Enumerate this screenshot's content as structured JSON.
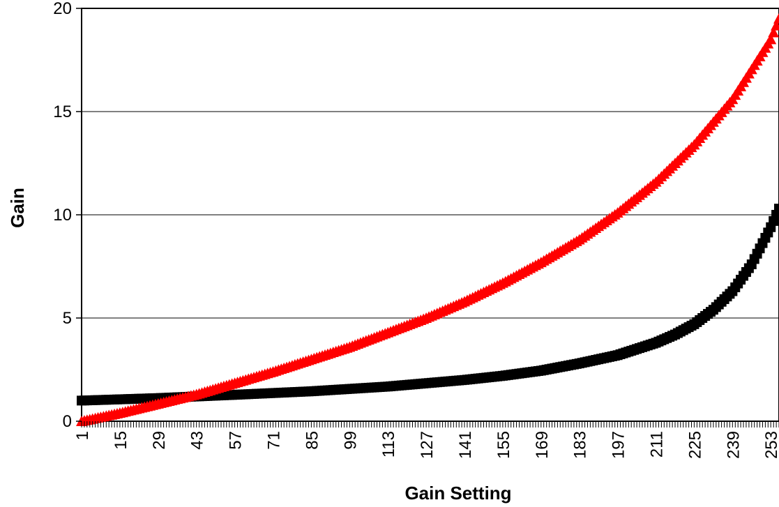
{
  "chart_data": {
    "type": "line",
    "title": "",
    "xlabel": "Gain Setting",
    "ylabel": "Gain",
    "xlim": [
      1,
      256
    ],
    "ylim": [
      0,
      20
    ],
    "y_ticks": [
      0,
      5,
      10,
      15,
      20
    ],
    "x_tick_labels": [
      "1",
      "15",
      "29",
      "43",
      "57",
      "71",
      "85",
      "99",
      "113",
      "127",
      "141",
      "155",
      "169",
      "183",
      "197",
      "211",
      "225",
      "239",
      "253"
    ],
    "grid": "horizontal",
    "legend": "none",
    "series": [
      {
        "marker": "square",
        "color": "#000000",
        "x": [
          1,
          29,
          57,
          85,
          113,
          141,
          155,
          169,
          183,
          197,
          211,
          218,
          225,
          232,
          239,
          246,
          253,
          256
        ],
        "values": [
          1.0,
          1.12,
          1.28,
          1.45,
          1.68,
          2.0,
          2.2,
          2.45,
          2.8,
          3.2,
          3.8,
          4.2,
          4.7,
          5.4,
          6.3,
          7.6,
          9.4,
          10.3
        ]
      },
      {
        "marker": "triangle",
        "color": "#ff0000",
        "x": [
          1,
          15,
          29,
          43,
          57,
          71,
          85,
          99,
          113,
          127,
          141,
          155,
          169,
          183,
          197,
          211,
          225,
          239,
          253,
          256
        ],
        "values": [
          0.0,
          0.4,
          0.85,
          1.3,
          1.85,
          2.4,
          3.0,
          3.6,
          4.3,
          5.0,
          5.8,
          6.7,
          7.7,
          8.8,
          10.1,
          11.6,
          13.4,
          15.6,
          18.5,
          19.5
        ]
      }
    ]
  }
}
